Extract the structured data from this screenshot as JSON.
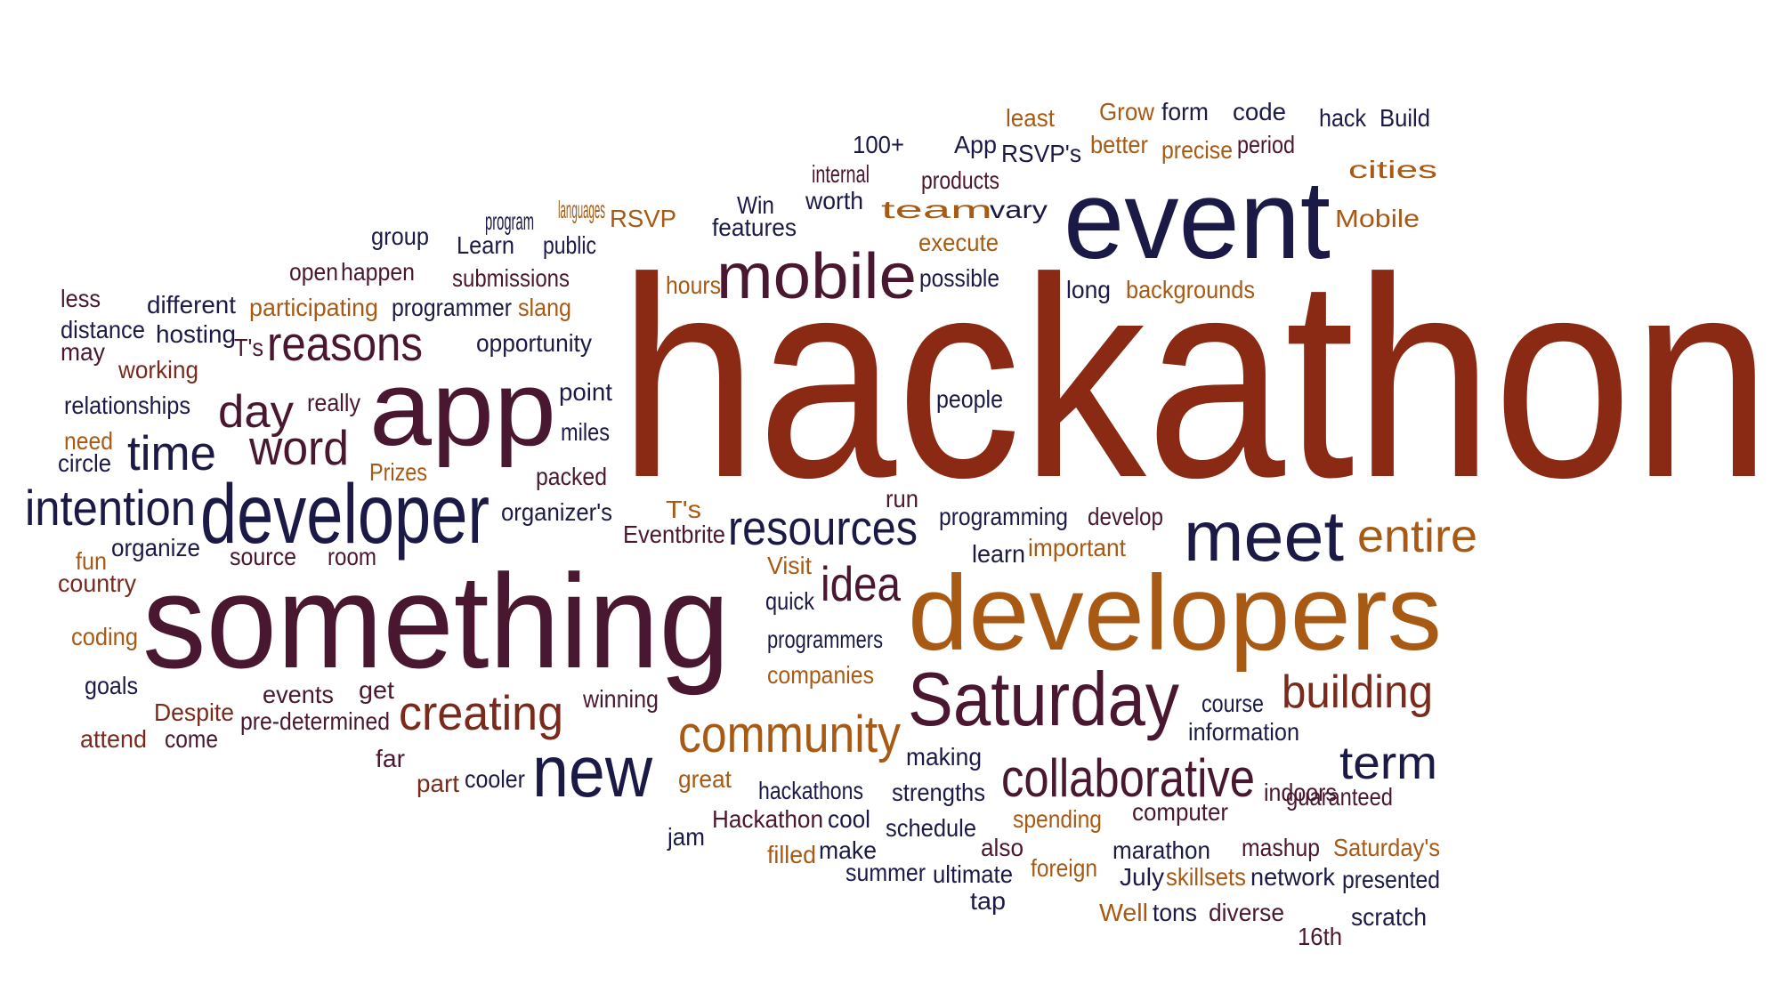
{
  "colors": {
    "brown_red": "#8b2a14",
    "navy": "#1b1a47",
    "plum": "#4a1730",
    "orange": "#a85a14",
    "rust": "#7a2a1c",
    "gold": "#b9862a"
  },
  "words": [
    {
      "text": "hackathon",
      "color": "brown_red"
    },
    {
      "text": "something",
      "color": "plum"
    },
    {
      "text": "developers",
      "color": "orange"
    },
    {
      "text": "event",
      "color": "navy"
    },
    {
      "text": "app",
      "color": "plum"
    },
    {
      "text": "developer",
      "color": "navy"
    },
    {
      "text": "mobile",
      "color": "plum"
    },
    {
      "text": "meet",
      "color": "navy"
    },
    {
      "text": "Saturday",
      "color": "plum"
    },
    {
      "text": "new",
      "color": "navy"
    },
    {
      "text": "collaborative",
      "color": "plum"
    },
    {
      "text": "community",
      "color": "orange"
    },
    {
      "text": "resources",
      "color": "navy"
    },
    {
      "text": "intention",
      "color": "navy"
    },
    {
      "text": "reasons",
      "color": "plum"
    },
    {
      "text": "building",
      "color": "rust"
    },
    {
      "text": "creating",
      "color": "rust"
    },
    {
      "text": "entire",
      "color": "orange"
    },
    {
      "text": "idea",
      "color": "plum"
    },
    {
      "text": "term",
      "color": "navy"
    },
    {
      "text": "word",
      "color": "plum"
    },
    {
      "text": "time",
      "color": "navy"
    },
    {
      "text": "day",
      "color": "plum"
    },
    {
      "text": "least",
      "color": "orange"
    },
    {
      "text": "Grow",
      "color": "orange"
    },
    {
      "text": "form",
      "color": "navy"
    },
    {
      "text": "code",
      "color": "navy"
    },
    {
      "text": "hack",
      "color": "navy"
    },
    {
      "text": "Build",
      "color": "navy"
    },
    {
      "text": "100+",
      "color": "navy"
    },
    {
      "text": "App",
      "color": "navy"
    },
    {
      "text": "RSVP's",
      "color": "navy"
    },
    {
      "text": "better",
      "color": "orange"
    },
    {
      "text": "precise",
      "color": "orange"
    },
    {
      "text": "period",
      "color": "plum"
    },
    {
      "text": "cities",
      "color": "orange"
    },
    {
      "text": "internal",
      "color": "plum"
    },
    {
      "text": "products",
      "color": "plum"
    },
    {
      "text": "Win",
      "color": "navy"
    },
    {
      "text": "worth",
      "color": "navy"
    },
    {
      "text": "team",
      "color": "orange"
    },
    {
      "text": "vary",
      "color": "navy"
    },
    {
      "text": "Mobile",
      "color": "orange"
    },
    {
      "text": "program",
      "color": "navy"
    },
    {
      "text": "languages",
      "color": "orange"
    },
    {
      "text": "RSVP",
      "color": "orange"
    },
    {
      "text": "features",
      "color": "navy"
    },
    {
      "text": "group",
      "color": "navy"
    },
    {
      "text": "Learn",
      "color": "navy"
    },
    {
      "text": "public",
      "color": "navy"
    },
    {
      "text": "execute",
      "color": "orange"
    },
    {
      "text": "open",
      "color": "plum"
    },
    {
      "text": "happen",
      "color": "plum"
    },
    {
      "text": "submissions",
      "color": "plum"
    },
    {
      "text": "hours",
      "color": "orange"
    },
    {
      "text": "possible",
      "color": "navy"
    },
    {
      "text": "long",
      "color": "navy"
    },
    {
      "text": "backgrounds",
      "color": "orange"
    },
    {
      "text": "less",
      "color": "plum"
    },
    {
      "text": "different",
      "color": "navy"
    },
    {
      "text": "participating",
      "color": "orange"
    },
    {
      "text": "programmer",
      "color": "navy"
    },
    {
      "text": "slang",
      "color": "orange"
    },
    {
      "text": "distance",
      "color": "navy"
    },
    {
      "text": "hosting",
      "color": "navy"
    },
    {
      "text": "may",
      "color": "plum"
    },
    {
      "text": "T's",
      "color": "plum"
    },
    {
      "text": "opportunity",
      "color": "navy"
    },
    {
      "text": "working",
      "color": "rust"
    },
    {
      "text": "relationships",
      "color": "navy"
    },
    {
      "text": "really",
      "color": "plum"
    },
    {
      "text": "point",
      "color": "navy"
    },
    {
      "text": "people",
      "color": "navy"
    },
    {
      "text": "need",
      "color": "orange"
    },
    {
      "text": "miles",
      "color": "navy"
    },
    {
      "text": "circle",
      "color": "navy"
    },
    {
      "text": "Prizes",
      "color": "orange"
    },
    {
      "text": "packed",
      "color": "plum"
    },
    {
      "text": "T's",
      "color": "orange"
    },
    {
      "text": "run",
      "color": "plum"
    },
    {
      "text": "programming",
      "color": "navy"
    },
    {
      "text": "develop",
      "color": "plum"
    },
    {
      "text": "organizer's",
      "color": "navy"
    },
    {
      "text": "Eventbrite",
      "color": "plum"
    },
    {
      "text": "organize",
      "color": "navy"
    },
    {
      "text": "fun",
      "color": "orange"
    },
    {
      "text": "source",
      "color": "plum"
    },
    {
      "text": "room",
      "color": "plum"
    },
    {
      "text": "learn",
      "color": "navy"
    },
    {
      "text": "important",
      "color": "orange"
    },
    {
      "text": "country",
      "color": "rust"
    },
    {
      "text": "Visit",
      "color": "orange"
    },
    {
      "text": "quick",
      "color": "navy"
    },
    {
      "text": "coding",
      "color": "orange"
    },
    {
      "text": "programmers",
      "color": "navy"
    },
    {
      "text": "companies",
      "color": "orange"
    },
    {
      "text": "goals",
      "color": "navy"
    },
    {
      "text": "get",
      "color": "plum"
    },
    {
      "text": "events",
      "color": "plum"
    },
    {
      "text": "winning",
      "color": "plum"
    },
    {
      "text": "course",
      "color": "navy"
    },
    {
      "text": "Despite",
      "color": "rust"
    },
    {
      "text": "pre-determined",
      "color": "plum"
    },
    {
      "text": "information",
      "color": "navy"
    },
    {
      "text": "attend",
      "color": "rust"
    },
    {
      "text": "come",
      "color": "plum"
    },
    {
      "text": "far",
      "color": "plum"
    },
    {
      "text": "making",
      "color": "navy"
    },
    {
      "text": "part",
      "color": "rust"
    },
    {
      "text": "cooler",
      "color": "navy"
    },
    {
      "text": "great",
      "color": "orange"
    },
    {
      "text": "hackathons",
      "color": "navy"
    },
    {
      "text": "strengths",
      "color": "navy"
    },
    {
      "text": "indoors",
      "color": "plum"
    },
    {
      "text": "guaranteed",
      "color": "plum"
    },
    {
      "text": "Hackathon",
      "color": "plum"
    },
    {
      "text": "cool",
      "color": "navy"
    },
    {
      "text": "schedule",
      "color": "navy"
    },
    {
      "text": "spending",
      "color": "orange"
    },
    {
      "text": "computer",
      "color": "plum"
    },
    {
      "text": "jam",
      "color": "navy"
    },
    {
      "text": "filled",
      "color": "orange"
    },
    {
      "text": "make",
      "color": "navy"
    },
    {
      "text": "also",
      "color": "plum"
    },
    {
      "text": "marathon",
      "color": "navy"
    },
    {
      "text": "mashup",
      "color": "plum"
    },
    {
      "text": "Saturday's",
      "color": "orange"
    },
    {
      "text": "summer",
      "color": "navy"
    },
    {
      "text": "ultimate",
      "color": "navy"
    },
    {
      "text": "foreign",
      "color": "orange"
    },
    {
      "text": "July",
      "color": "navy"
    },
    {
      "text": "skillsets",
      "color": "orange"
    },
    {
      "text": "network",
      "color": "navy"
    },
    {
      "text": "presented",
      "color": "navy"
    },
    {
      "text": "tap",
      "color": "navy"
    },
    {
      "text": "Well",
      "color": "orange"
    },
    {
      "text": "tons",
      "color": "navy"
    },
    {
      "text": "diverse",
      "color": "plum"
    },
    {
      "text": "16th",
      "color": "plum"
    },
    {
      "text": "scratch",
      "color": "navy"
    }
  ]
}
